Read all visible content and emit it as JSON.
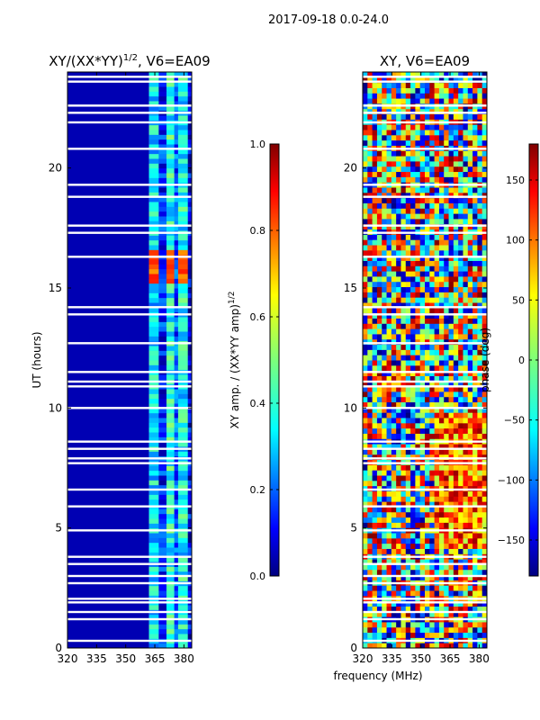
{
  "suptitle": "2017-09-18 0.0-24.0",
  "chart_data": [
    {
      "type": "heatmap",
      "title": "XY/(XX*YY)^1/2, V6=EA09",
      "title_main": "XY/(XX*YY)",
      "title_sup": "1/2",
      "title_rest": ", V6=EA09",
      "xlabel": "",
      "ylabel": "UT (hours)",
      "xlim": [
        320,
        384
      ],
      "ylim": [
        0,
        24
      ],
      "xticks": [
        320,
        335,
        350,
        365,
        380
      ],
      "yticks": [
        0,
        5,
        10,
        15,
        20
      ],
      "colorbar": {
        "label": "XY amp. / (XX*YY amp)^1/2",
        "label_main": "XY amp. / (XX*YY amp)",
        "label_sup": "1/2",
        "range": [
          0.0,
          1.0
        ],
        "ticks": [
          "0.0",
          "0.2",
          "0.4",
          "0.6",
          "0.8",
          "1.0"
        ],
        "tick_values": [
          0.0,
          0.2,
          0.4,
          0.6,
          0.8,
          1.0
        ]
      },
      "bands": [
        {
          "x0": 320,
          "x1": 362,
          "value": 0.05,
          "note": "background"
        },
        {
          "x0": 362,
          "x1": 367,
          "value": 0.35
        },
        {
          "x0": 367,
          "x1": 371,
          "value": 0.15
        },
        {
          "x0": 371,
          "x1": 375,
          "value": 0.4
        },
        {
          "x0": 375,
          "x1": 377,
          "value": 0.2
        },
        {
          "x0": 377,
          "x1": 382,
          "value": 0.38
        },
        {
          "x0": 382,
          "x1": 384,
          "value": 0.1
        }
      ],
      "hotspot": {
        "x0": 362,
        "x1": 382,
        "y0": 15.2,
        "y1": 16.6,
        "value": 0.8
      }
    },
    {
      "type": "heatmap",
      "title": "XY, V6=EA09",
      "xlabel": "frequency (MHz)",
      "ylabel": "",
      "xlim": [
        320,
        384
      ],
      "ylim": [
        0,
        24
      ],
      "xticks": [
        320,
        335,
        350,
        365,
        380
      ],
      "yticks": [
        0,
        5,
        10,
        15,
        20
      ],
      "colorbar": {
        "label": "phase (deg)",
        "range": [
          -180,
          180
        ],
        "ticks": [
          "−150",
          "−100",
          "−50",
          "0",
          "50",
          "100",
          "150"
        ],
        "tick_values": [
          -150,
          -100,
          -50,
          0,
          50,
          100,
          150
        ]
      }
    }
  ],
  "flag_rows_hours": [
    0.3,
    1.2,
    1.5,
    1.9,
    2.05,
    2.7,
    3.0,
    3.5,
    3.8,
    4.9,
    5.9,
    6.6,
    7.7,
    7.9,
    8.3,
    8.6,
    10.0,
    10.9,
    11.1,
    11.5,
    12.7,
    13.9,
    14.2,
    16.3,
    17.3,
    17.6,
    18.8,
    19.3,
    20.8,
    21.9,
    22.3,
    22.6,
    23.6,
    23.8
  ]
}
